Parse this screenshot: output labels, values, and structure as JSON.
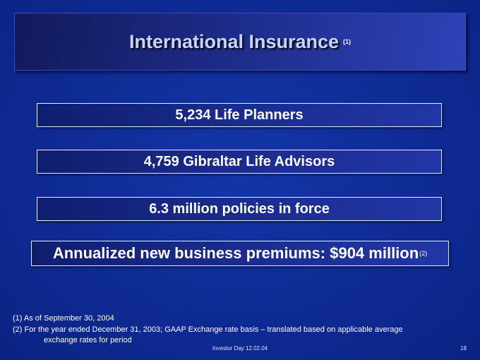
{
  "header": {
    "title": "International Insurance",
    "note": "(1)"
  },
  "boxes": [
    {
      "text": "5,234 Life Planners"
    },
    {
      "text": "4,759 Gibraltar Life Advisors"
    },
    {
      "text": "6.3 million policies in force"
    },
    {
      "text": "Annualized new business premiums: $904 million",
      "note": "(2)"
    }
  ],
  "footnotes": [
    "(1) As of September 30, 2004",
    "(2) For the year ended December 31, 2003; GAAP Exchange rate basis – translated based on applicable average",
    "exchange rates for period"
  ],
  "footer": {
    "text": "Investor Day 12.02.04",
    "page": "18"
  }
}
